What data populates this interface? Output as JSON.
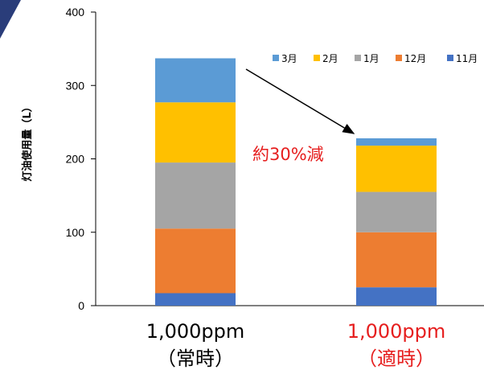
{
  "chart_data": {
    "type": "bar",
    "stacked": true,
    "ylabel": "灯油使用量（L）",
    "ylim": [
      0,
      400
    ],
    "yticks": [
      0,
      100,
      200,
      300,
      400
    ],
    "categories": [
      {
        "line1": "1,000ppm",
        "line2": "（常時）",
        "color": "#000000"
      },
      {
        "line1": "1,000ppm",
        "line2": "（適時）",
        "color": "#e61e1e"
      }
    ],
    "series": [
      {
        "name": "11月",
        "color": "#4472c4",
        "values": [
          17,
          25
        ]
      },
      {
        "name": "12月",
        "color": "#ed7d31",
        "values": [
          88,
          75
        ]
      },
      {
        "name": "1月",
        "color": "#a5a5a5",
        "values": [
          90,
          55
        ]
      },
      {
        "name": "2月",
        "color": "#ffc000",
        "values": [
          82,
          63
        ]
      },
      {
        "name": "3月",
        "color": "#5b9bd5",
        "values": [
          60,
          10
        ]
      }
    ],
    "legend_order": [
      "3月",
      "2月",
      "1月",
      "12月",
      "11月"
    ],
    "legend_position": "top-right",
    "grid": false,
    "annotation": {
      "text": "約30%減",
      "color": "#e61e1e"
    }
  }
}
